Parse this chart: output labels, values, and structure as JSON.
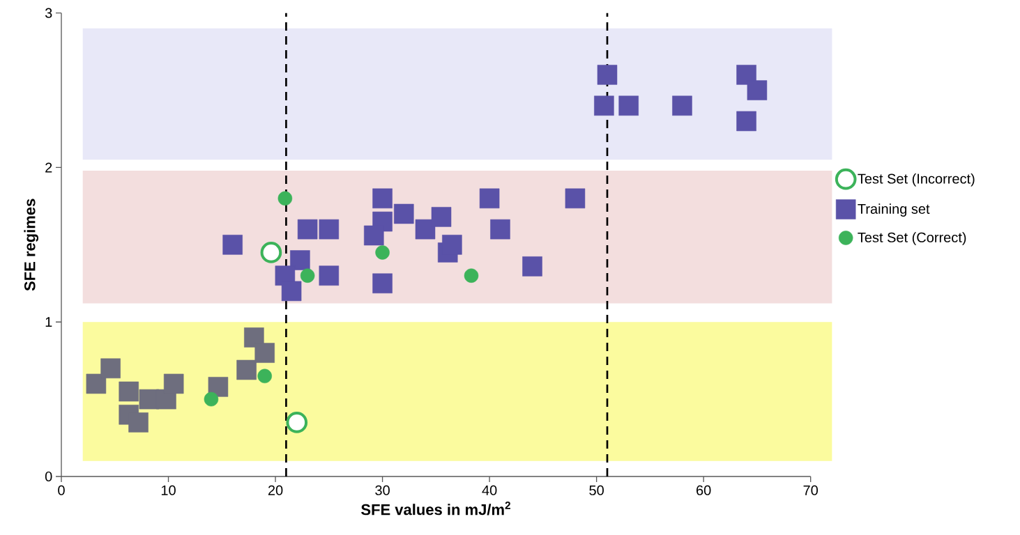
{
  "chart_data": {
    "type": "scatter",
    "xlabel": "SFE values in mJ/m$^{2}$",
    "ylabel": "SFE   regimes",
    "xlim": [
      0,
      70
    ],
    "ylim": [
      0,
      3
    ],
    "xticks": [
      0,
      10,
      20,
      30,
      40,
      50,
      60,
      70
    ],
    "yticks": [
      0,
      1,
      2,
      3
    ],
    "grid": false,
    "legend": "right",
    "bands": [
      {
        "axis": "y",
        "from": 0.1,
        "to": 1.0,
        "color": "#fbfb9e"
      },
      {
        "axis": "y",
        "from": 1.12,
        "to": 1.98,
        "color": "#f3dede"
      },
      {
        "axis": "y",
        "from": 2.05,
        "to": 2.9,
        "color": "#e8e8f8"
      }
    ],
    "ref_lines": [
      {
        "axis": "x",
        "value": 21,
        "color": "#000000",
        "line_style": "dashed"
      },
      {
        "axis": "x",
        "value": 51,
        "color": "#000000",
        "line_style": "dashed"
      }
    ],
    "series": [
      {
        "name": "Test Set (Incorrect)",
        "color": "#3cb35a",
        "marker": "circle",
        "x": [
          19.6,
          22
        ],
        "values": [
          1.45,
          0.35
        ]
      },
      {
        "name": "Training set",
        "color": "#5a52a8",
        "marker": "square",
        "x": [
          16,
          23,
          25,
          22.3,
          20.9,
          21.5,
          25,
          30,
          30,
          29.2,
          32,
          34,
          35.5,
          36.1,
          36.5,
          30,
          40,
          41,
          44,
          48,
          51,
          50.7,
          53,
          58,
          64,
          65,
          64,
          3.25,
          4.6,
          6.3,
          6.3,
          7.2,
          8.2,
          9.8,
          10.5,
          14.65,
          17.3,
          18,
          19
        ],
        "values": [
          1.5,
          1.6,
          1.6,
          1.4,
          1.3,
          1.2,
          1.3,
          1.8,
          1.65,
          1.56,
          1.7,
          1.6,
          1.68,
          1.45,
          1.5,
          1.25,
          1.8,
          1.6,
          1.36,
          1.8,
          2.6,
          2.4,
          2.4,
          2.4,
          2.6,
          2.5,
          2.3,
          0.6,
          0.7,
          0.55,
          0.4,
          0.35,
          0.5,
          0.5,
          0.6,
          0.58,
          0.69,
          0.9,
          0.8
        ],
        "colors": [
          "#5a52a8",
          "#5a52a8",
          "#5a52a8",
          "#5a52a8",
          "#5a52a8",
          "#5a52a8",
          "#5a52a8",
          "#5a52a8",
          "#5a52a8",
          "#5a52a8",
          "#5a52a8",
          "#5a52a8",
          "#5a52a8",
          "#5a52a8",
          "#5a52a8",
          "#5a52a8",
          "#5a52a8",
          "#5a52a8",
          "#5a52a8",
          "#5a52a8",
          "#5a52a8",
          "#5a52a8",
          "#5a52a8",
          "#5a52a8",
          "#5a52a8",
          "#5a52a8",
          "#5a52a8",
          "#6e6e7e",
          "#6e6e7e",
          "#6e6e7e",
          "#6e6e7e",
          "#6e6e7e",
          "#6e6e7e",
          "#6e6e7e",
          "#6e6e7e",
          "#6e6e7e",
          "#6e6e7e",
          "#6e6e7e",
          "#6e6e7e"
        ]
      },
      {
        "name": "Test Set (Correct)",
        "color": "#3cb35a",
        "marker": "circle",
        "x": [
          20.9,
          23,
          30,
          38.3,
          14,
          19
        ],
        "values": [
          1.8,
          1.3,
          1.45,
          1.3,
          0.5,
          0.65
        ]
      }
    ]
  }
}
